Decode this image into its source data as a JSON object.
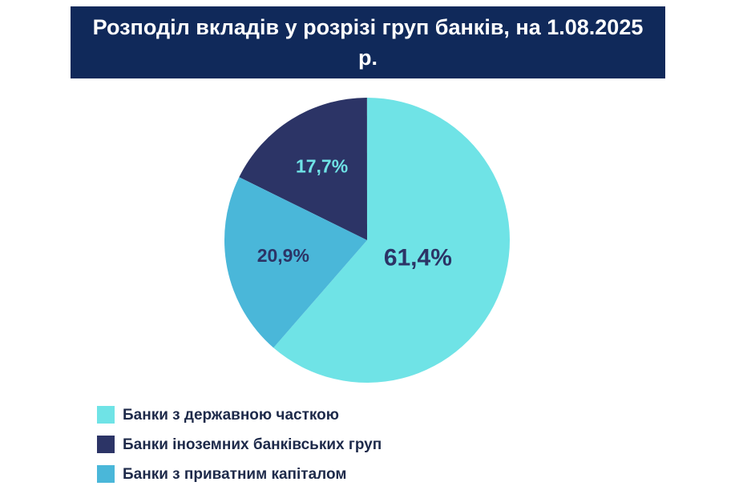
{
  "chart_data": {
    "type": "pie",
    "title": "Розподіл вкладів у розрізі груп банків, на 1.08.2025 р.",
    "categories": [
      "Банки з державною часткою",
      "Банки іноземних банківських груп",
      "Банки з приватним капіталом"
    ],
    "values": [
      61.4,
      17.7,
      20.9
    ],
    "value_labels": [
      "61,4%",
      "17,7%",
      "20,9%"
    ],
    "colors": [
      "#6fe3e6",
      "#2c3466",
      "#4ab7d9"
    ],
    "label_colors": [
      "#2c3466",
      "#6fe3e6",
      "#2c3466"
    ],
    "startangle": 229,
    "counterclock": true,
    "legend": "bottom-left"
  }
}
